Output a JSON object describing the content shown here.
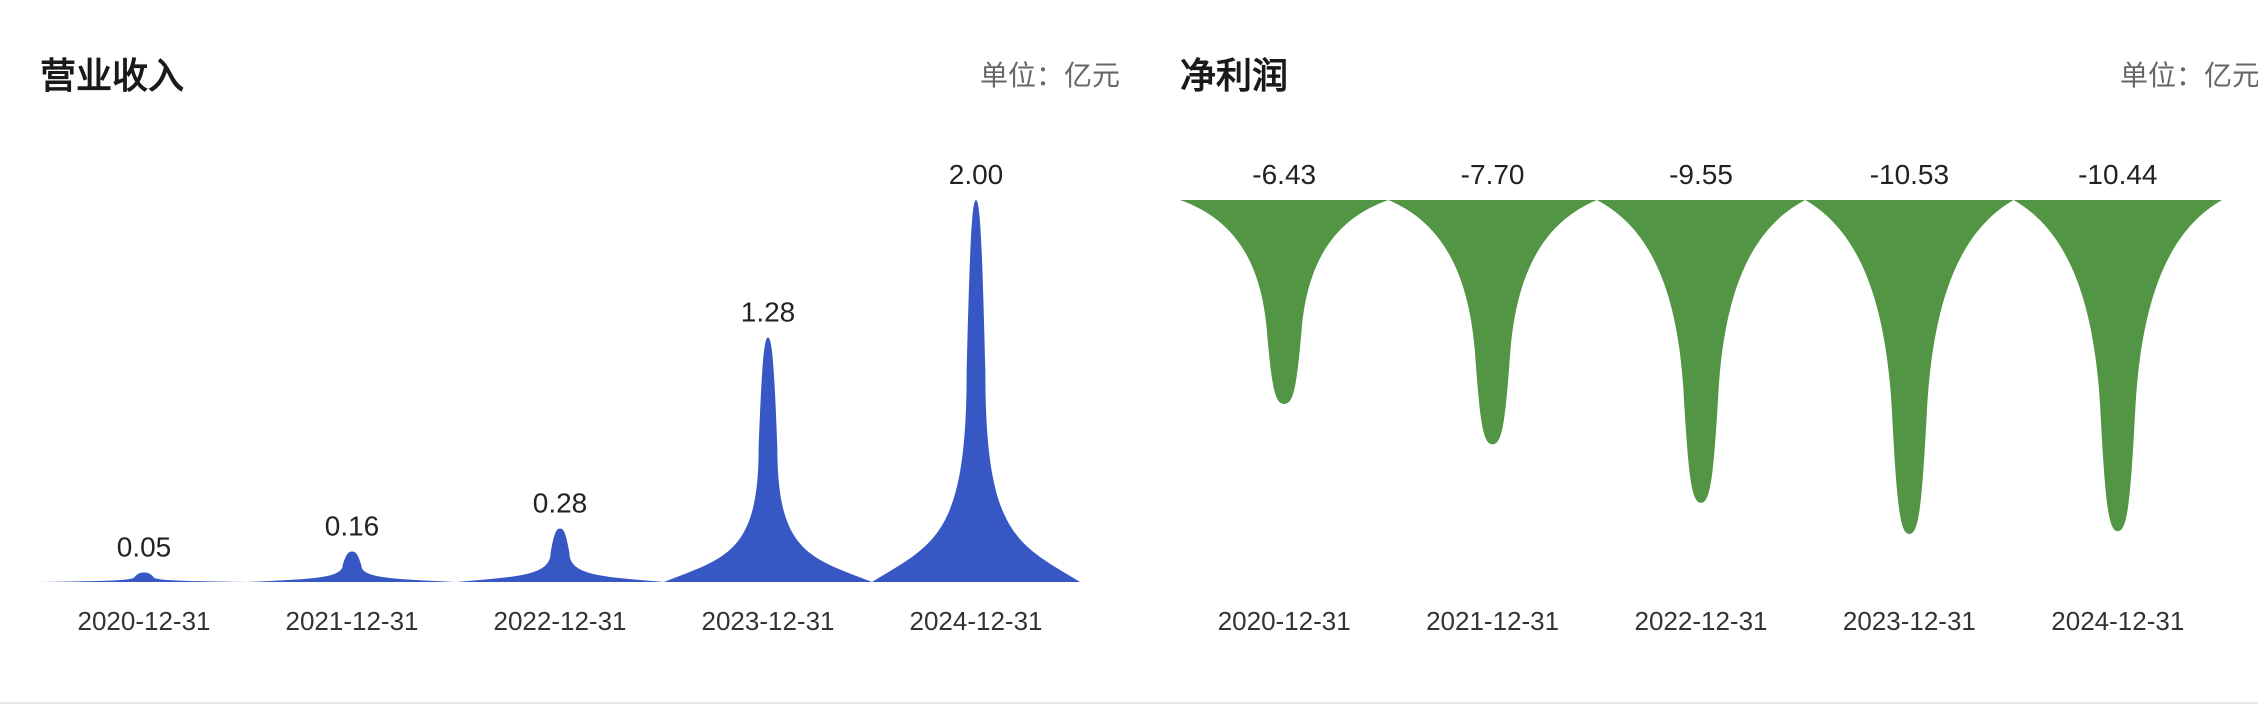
{
  "chart_data": [
    {
      "type": "bar",
      "title": "营业收入",
      "unit_label": "单位：亿元",
      "color": "#3657C4",
      "categories": [
        "2020-12-31",
        "2021-12-31",
        "2022-12-31",
        "2023-12-31",
        "2024-12-31"
      ],
      "values": [
        0.05,
        0.16,
        0.28,
        1.28,
        2.0
      ],
      "value_labels": [
        "0.05",
        "0.16",
        "0.28",
        "1.28",
        "2.00"
      ],
      "ylim": [
        0,
        2.0
      ],
      "grid": false
    },
    {
      "type": "bar",
      "title": "净利润",
      "unit_label": "单位：亿元",
      "color": "#529645",
      "categories": [
        "2020-12-31",
        "2021-12-31",
        "2022-12-31",
        "2023-12-31",
        "2024-12-31"
      ],
      "values": [
        -6.43,
        -7.7,
        -9.55,
        -10.53,
        -10.44
      ],
      "value_labels": [
        "-6.43",
        "-7.70",
        "-9.55",
        "-10.53",
        "-10.44"
      ],
      "ylim": [
        -10.53,
        0
      ],
      "grid": false
    }
  ]
}
